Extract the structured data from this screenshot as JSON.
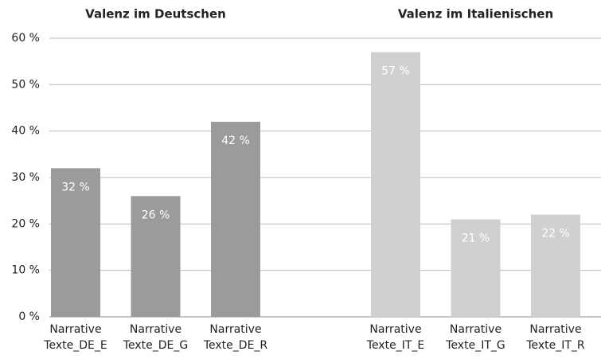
{
  "chart_data": {
    "type": "bar",
    "ylim": [
      0,
      60
    ],
    "yticks": [
      {
        "value": 0,
        "label": "0 %"
      },
      {
        "value": 10,
        "label": "10 %"
      },
      {
        "value": 20,
        "label": "20 %"
      },
      {
        "value": 30,
        "label": "30 %"
      },
      {
        "value": 40,
        "label": "40 %"
      },
      {
        "value": 50,
        "label": "50 %"
      },
      {
        "value": 60,
        "label": "60 %"
      }
    ],
    "grid": true,
    "groups": [
      {
        "title": "Valenz im Deutschen",
        "color": "#9b9b9b",
        "categories": [
          "Narrative Texte_DE_E",
          "Narrative Texte_DE_G",
          "Narrative Texte_DE_R"
        ],
        "values": [
          32,
          26,
          42
        ],
        "value_labels": [
          "32 %",
          "26 %",
          "42 %"
        ]
      },
      {
        "title": "Valenz im Italienischen",
        "color": "#d0d0d0",
        "categories": [
          "Narrative Texte_IT_E",
          "Narrative Texte_IT_G",
          "Narrative Texte_IT_R"
        ],
        "values": [
          57,
          21,
          22
        ],
        "value_labels": [
          "57 %",
          "21 %",
          "22 %"
        ]
      }
    ]
  }
}
